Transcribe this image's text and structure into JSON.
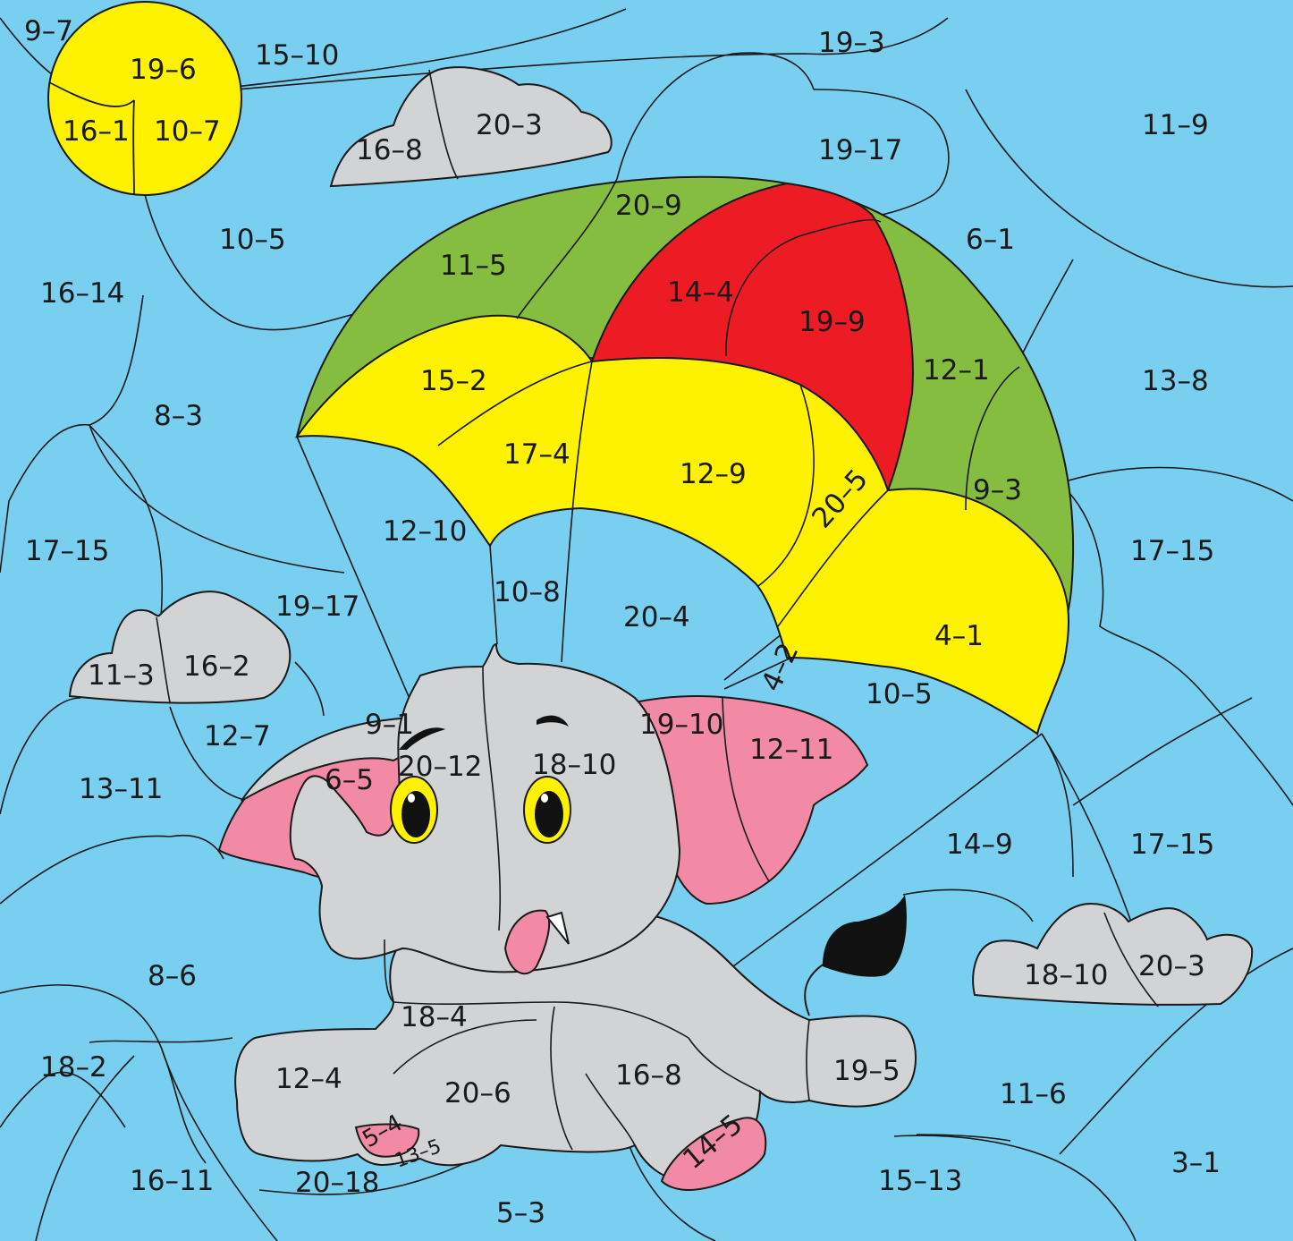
{
  "colors": {
    "sky": "#78cfef",
    "yellow": "#fff200",
    "green": "#84bd3f",
    "red": "#ed1c24",
    "gray": "#d1d3d4",
    "pink": "#f28aa6",
    "black": "#111111",
    "line": "#1a1a1a"
  },
  "labels": {
    "sky": {
      "a": "9–7",
      "b": "15–10",
      "c": "19–3",
      "d": "11–9",
      "e": "19–17",
      "f": "10–5",
      "g": "16–14",
      "h": "6–1",
      "i": "8–3",
      "j": "13–8",
      "k": "17–15",
      "l": "12–10",
      "m": "19–17",
      "n": "10–8",
      "o": "20–4",
      "p": "17–15",
      "q": "12–7",
      "r": "13–11",
      "s": "10–5",
      "t": "14–9",
      "u": "17–15",
      "v": "8–6",
      "w": "18–2",
      "x": "11–6",
      "y": "16–11",
      "z": "20–18",
      "aa": "5–3",
      "ab": "15–13",
      "ac": "3–1",
      "ad": "4–2"
    },
    "sun": {
      "top": "19–6",
      "left": "16–1",
      "right": "10–7"
    },
    "clouds": {
      "c1_left": "16–8",
      "c1_right": "20–3",
      "c2_left": "11–3",
      "c2_right": "16–2",
      "c3_left": "18–10",
      "c3_right": "20–3"
    },
    "parachute": {
      "g1": "20–9",
      "g2": "11–5",
      "r1": "14–4",
      "r2": "19–9",
      "g3": "12–1",
      "g4": "9–3",
      "y1": "15–2",
      "y2": "17–4",
      "y3": "12–9",
      "y4": "20–5",
      "y5": "4–1"
    },
    "elephant": {
      "e1": "9–1",
      "e2": "6–5",
      "e3": "20–12",
      "e4": "18–10",
      "e5": "19–10",
      "e6": "12–11",
      "e7": "18–4",
      "e8": "12–4",
      "e9": "20–6",
      "e10": "16–8",
      "e11": "19–5",
      "e12": "5–4",
      "e13": "13–5",
      "e14": "14–5"
    }
  }
}
